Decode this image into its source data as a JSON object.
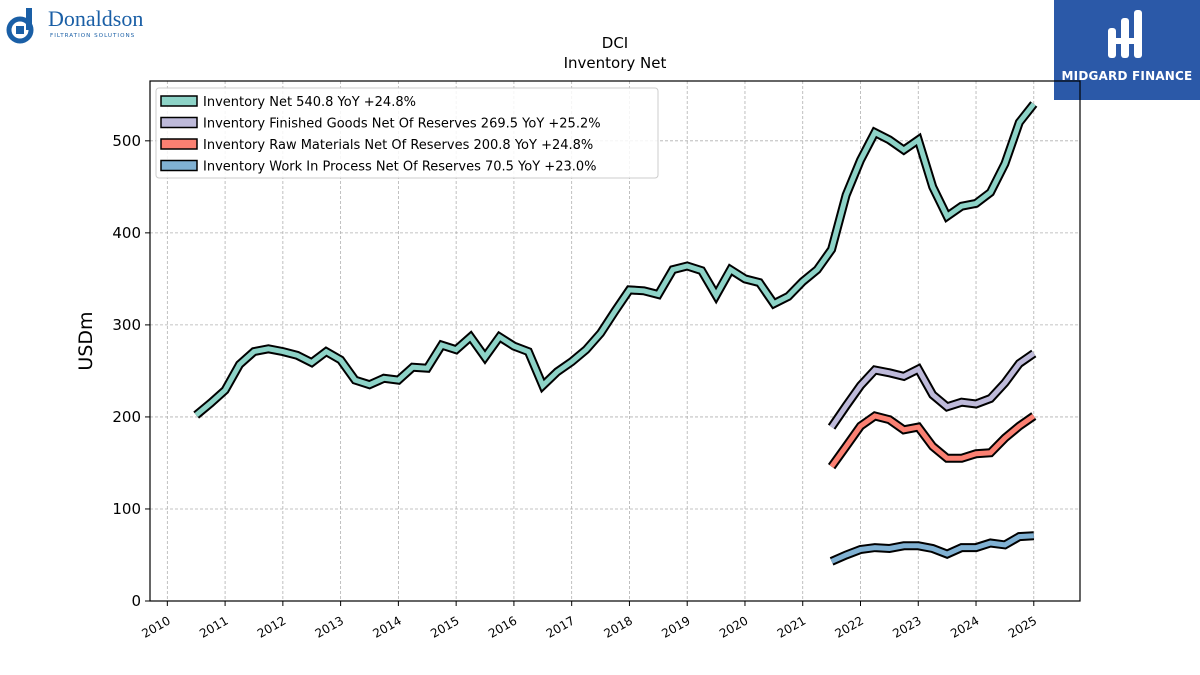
{
  "header": {
    "left_logo": {
      "name": "Donaldson",
      "tagline": "FILTRATION SOLUTIONS",
      "color": "#1a5fa6"
    },
    "right_logo": {
      "name": "MIDGARD FINANCE",
      "bg": "#2b59a8"
    }
  },
  "chart_data": {
    "type": "line",
    "title": "DCI",
    "subtitle": "Inventory Net",
    "xlabel": "",
    "ylabel": "USDm",
    "xlim": [
      2009.7,
      2025.8
    ],
    "ylim": [
      0,
      565
    ],
    "x_ticks": [
      "2010",
      "2011",
      "2012",
      "2013",
      "2014",
      "2015",
      "2016",
      "2017",
      "2018",
      "2019",
      "2020",
      "2021",
      "2022",
      "2023",
      "2024",
      "2025"
    ],
    "y_ticks": [
      "0",
      "100",
      "200",
      "300",
      "400",
      "500"
    ],
    "grid": true,
    "legend_position": "top-left",
    "series": [
      {
        "name": "Inventory Net  540.8 YoY +24.8%",
        "color": "#8dd3c7",
        "x": [
          2010.5,
          2010.75,
          2011.0,
          2011.25,
          2011.5,
          2011.75,
          2012.0,
          2012.25,
          2012.5,
          2012.75,
          2013.0,
          2013.25,
          2013.5,
          2013.75,
          2014.0,
          2014.25,
          2014.5,
          2014.75,
          2015.0,
          2015.25,
          2015.5,
          2015.75,
          2016.0,
          2016.25,
          2016.5,
          2016.75,
          2017.0,
          2017.25,
          2017.5,
          2017.75,
          2018.0,
          2018.25,
          2018.5,
          2018.75,
          2019.0,
          2019.25,
          2019.5,
          2019.75,
          2020.0,
          2020.25,
          2020.5,
          2020.75,
          2021.0,
          2021.25,
          2021.5,
          2021.75,
          2022.0,
          2022.25,
          2022.5,
          2022.75,
          2023.0,
          2023.25,
          2023.5,
          2023.75,
          2024.0,
          2024.25,
          2024.5,
          2024.75,
          2025.0
        ],
        "values": [
          202,
          215,
          229,
          257,
          271,
          274,
          271,
          267,
          259,
          271,
          262,
          240,
          235,
          242,
          240,
          254,
          253,
          278,
          273,
          287,
          265,
          287,
          277,
          271,
          234,
          249,
          260,
          273,
          291,
          315,
          338,
          337,
          333,
          360,
          364,
          359,
          332,
          360,
          350,
          346,
          323,
          331,
          347,
          360,
          382,
          441,
          479,
          509,
          501,
          490,
          501,
          450,
          418,
          429,
          432,
          444,
          475,
          520,
          540
        ]
      },
      {
        "name": "Inventory Finished Goods Net Of Reserves  269.5 YoY +25.2%",
        "color": "#bebada",
        "x": [
          2021.5,
          2021.75,
          2022.0,
          2022.25,
          2022.5,
          2022.75,
          2023.0,
          2023.25,
          2023.5,
          2023.75,
          2024.0,
          2024.25,
          2024.5,
          2024.75,
          2025.0
        ],
        "values": [
          189,
          212,
          234,
          251,
          248,
          244,
          252,
          224,
          211,
          216,
          214,
          220,
          237,
          258,
          269
        ]
      },
      {
        "name": "Inventory Raw Materials Net Of Reserves  200.8 YoY +24.8%",
        "color": "#fb8072",
        "x": [
          2021.5,
          2021.75,
          2022.0,
          2022.25,
          2022.5,
          2022.75,
          2023.0,
          2023.25,
          2023.5,
          2023.75,
          2024.0,
          2024.25,
          2024.5,
          2024.75,
          2025.0
        ],
        "values": [
          146,
          168,
          190,
          201,
          197,
          186,
          189,
          168,
          155,
          155,
          160,
          161,
          177,
          190,
          201
        ]
      },
      {
        "name": "Inventory Work In Process Net Of Reserves  70.5 YoY +23.0%",
        "color": "#80b1d3",
        "x": [
          2021.5,
          2021.75,
          2022.0,
          2022.25,
          2022.5,
          2022.75,
          2023.0,
          2023.25,
          2023.5,
          2023.75,
          2024.0,
          2024.25,
          2024.5,
          2024.75,
          2025.0
        ],
        "values": [
          43,
          50,
          56,
          58,
          57,
          60,
          60,
          57,
          51,
          58,
          58,
          63,
          61,
          70,
          71
        ]
      }
    ]
  }
}
